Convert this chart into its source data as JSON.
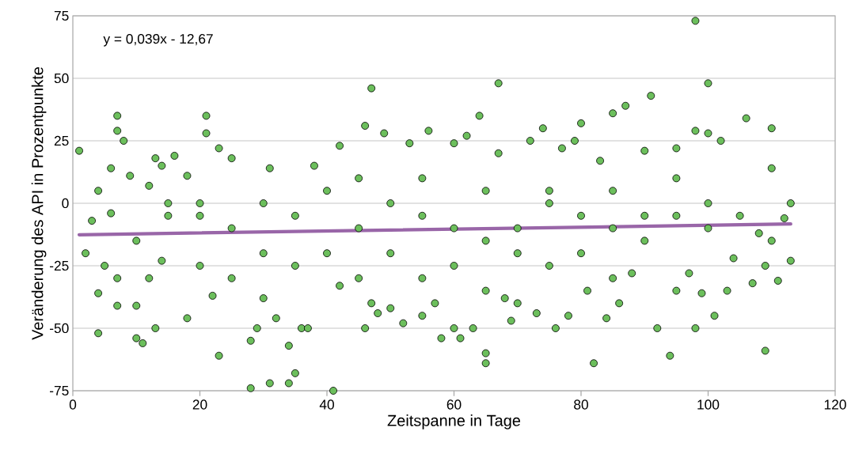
{
  "chart_data": {
    "type": "scatter",
    "xlabel": "Zeitspanne in Tage",
    "ylabel": "Veränderung des API in Prozentpunkte",
    "annotations": [
      "y = 0,039x - 12,67"
    ],
    "xlim": [
      0,
      120
    ],
    "xticks": [
      0,
      20,
      40,
      60,
      80,
      100,
      120
    ],
    "ylim": [
      -75,
      75
    ],
    "yticks": [
      -75,
      -50,
      -25,
      0,
      25,
      50,
      75
    ],
    "grid": "y",
    "marker": "circle",
    "series": [
      {
        "color": "#6cbf5c",
        "x": [
          1,
          7,
          7,
          8,
          4,
          4,
          4,
          3,
          2,
          5,
          6,
          6,
          7,
          7,
          10,
          11,
          10,
          9,
          12,
          13,
          13,
          14,
          14,
          15,
          16,
          18,
          18,
          20,
          21,
          21,
          22,
          23,
          23,
          25,
          28,
          28,
          29,
          30,
          31,
          31,
          32,
          34,
          34,
          35,
          36,
          37,
          38,
          41,
          42,
          42,
          46,
          46,
          47,
          47,
          48,
          49,
          50,
          52,
          53,
          55,
          56,
          57,
          58,
          60,
          60,
          61,
          62,
          63,
          64,
          65,
          65,
          67,
          67,
          68,
          69,
          70,
          72,
          73,
          74,
          76,
          77,
          78,
          79,
          80,
          81,
          82,
          83,
          84,
          85,
          86,
          87,
          88,
          90,
          91,
          92,
          94,
          95,
          97,
          98,
          98,
          98,
          99,
          100,
          100,
          101,
          102,
          103,
          104,
          106,
          107,
          108,
          109,
          110,
          110,
          111,
          112,
          113,
          113,
          109,
          10,
          15,
          20,
          25,
          30,
          35,
          40,
          45,
          50,
          55,
          60,
          65,
          70,
          75,
          80,
          85,
          90,
          95,
          100,
          105,
          40,
          50,
          60,
          70,
          80,
          90,
          100,
          110,
          45,
          55,
          65,
          75,
          85,
          95,
          30,
          20,
          12,
          25,
          35,
          45,
          55,
          65,
          75,
          85,
          95
        ],
        "values": [
          21,
          35,
          29,
          25,
          5,
          -36,
          -52,
          -7,
          -20,
          -25,
          14,
          -4,
          -30,
          -41,
          -54,
          -56,
          -41,
          11,
          7,
          18,
          -50,
          -23,
          15,
          -5,
          19,
          -46,
          11,
          -5,
          35,
          28,
          -37,
          -61,
          22,
          18,
          -74,
          -55,
          -50,
          -38,
          -72,
          14,
          -46,
          -72,
          -57,
          -68,
          -50,
          -50,
          15,
          -75,
          23,
          -33,
          31,
          -50,
          46,
          -40,
          -44,
          28,
          -42,
          -48,
          24,
          -45,
          29,
          -40,
          -54,
          -50,
          24,
          -54,
          27,
          -50,
          35,
          -60,
          -64,
          48,
          20,
          -38,
          -47,
          -40,
          25,
          -44,
          30,
          -50,
          22,
          -45,
          25,
          32,
          -35,
          -64,
          17,
          -46,
          36,
          -40,
          39,
          -28,
          21,
          43,
          -50,
          -61,
          22,
          -28,
          73,
          29,
          -50,
          -36,
          48,
          28,
          -45,
          25,
          -35,
          -22,
          34,
          -32,
          -12,
          -59,
          30,
          14,
          -31,
          -6,
          0,
          -23,
          -25,
          -15,
          0,
          0,
          -10,
          0,
          -5,
          5,
          -10,
          0,
          -5,
          -10,
          -15,
          -20,
          0,
          -5,
          -10,
          -15,
          -5,
          -10,
          -5,
          -20,
          -20,
          -25,
          -10,
          -20,
          -5,
          0,
          -15,
          10,
          10,
          5,
          5,
          5,
          10,
          -20,
          -25,
          -30,
          -30,
          -25,
          -30,
          -30,
          -35,
          -25,
          -30,
          -35
        ]
      },
      {
        "type": "line",
        "marker": "none",
        "color": "#9966a8",
        "x": [
          1,
          113
        ],
        "values": [
          -12.6,
          -8.3
        ]
      }
    ]
  }
}
